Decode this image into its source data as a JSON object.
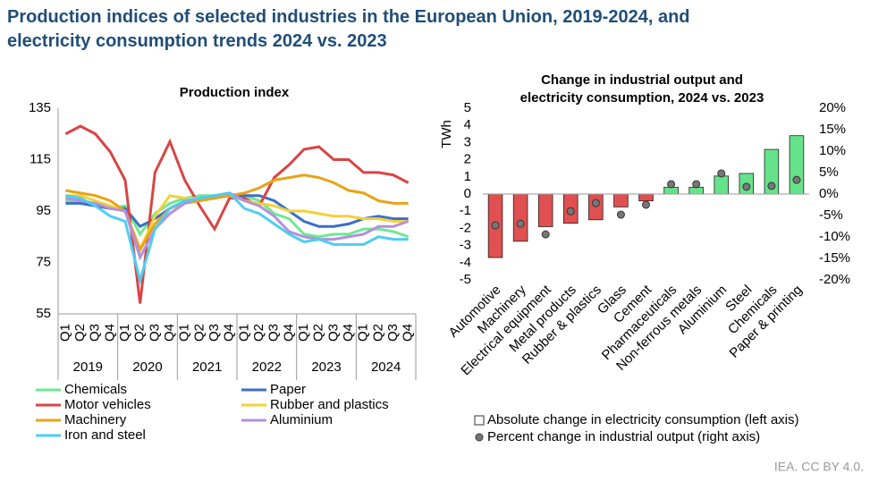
{
  "title": [
    "Production indices of selected industries in the European Union, 2019-2024, and",
    "electricity consumption trends 2024 vs. 2023"
  ],
  "source": "IEA. CC BY 4.0.",
  "chart_data": [
    {
      "type": "line",
      "title": "Production index",
      "categories": [
        "Q1",
        "Q2",
        "Q3",
        "Q4",
        "Q1",
        "Q2",
        "Q3",
        "Q4",
        "Q1",
        "Q2",
        "Q3",
        "Q4",
        "Q1",
        "Q2",
        "Q3",
        "Q4",
        "Q1",
        "Q2",
        "Q3",
        "Q4",
        "Q1",
        "Q2",
        "Q3",
        "Q4"
      ],
      "x_groups": [
        "2019",
        "2020",
        "2021",
        "2022",
        "2023",
        "2024"
      ],
      "ylim": [
        55,
        135
      ],
      "yticks": [
        55,
        75,
        95,
        115,
        135
      ],
      "grid": false,
      "series": [
        {
          "name": "Chemicals",
          "color": "#6ee88f",
          "values": [
            99,
            98,
            97,
            96,
            97,
            86,
            94,
            98,
            100,
            101,
            101,
            101,
            101,
            99,
            94,
            92,
            86,
            85,
            86,
            86,
            88,
            88,
            87,
            85
          ]
        },
        {
          "name": "Paper",
          "color": "#3b6fc9",
          "values": [
            98,
            98,
            97,
            96,
            96,
            89,
            92,
            96,
            99,
            100,
            100,
            101,
            101,
            101,
            99,
            95,
            91,
            89,
            89,
            90,
            92,
            93,
            92,
            92
          ]
        },
        {
          "name": "Motor vehicles",
          "color": "#d94545",
          "values": [
            125,
            128,
            125,
            118,
            107,
            59,
            110,
            122,
            107,
            97,
            88,
            100,
            100,
            97,
            108,
            113,
            119,
            120,
            115,
            115,
            110,
            110,
            109,
            106
          ]
        },
        {
          "name": "Rubber and plastics",
          "color": "#f2d13a",
          "values": [
            101,
            101,
            99,
            97,
            95,
            80,
            93,
            101,
            100,
            100,
            100,
            101,
            99,
            98,
            97,
            95,
            95,
            94,
            93,
            93,
            92,
            92,
            91,
            91
          ]
        },
        {
          "name": "Machinery",
          "color": "#e8a317",
          "values": [
            103,
            102,
            101,
            99,
            95,
            80,
            90,
            96,
            98,
            99,
            100,
            101,
            102,
            104,
            107,
            108,
            109,
            108,
            106,
            103,
            102,
            99,
            98,
            98
          ]
        },
        {
          "name": "Aluminium",
          "color": "#b48fe0",
          "values": [
            100,
            99,
            98,
            96,
            95,
            77,
            88,
            94,
            98,
            100,
            101,
            102,
            99,
            97,
            93,
            87,
            85,
            84,
            84,
            85,
            86,
            89,
            89,
            91
          ]
        },
        {
          "name": "Iron and steel",
          "color": "#4fcdf0",
          "values": [
            101,
            100,
            97,
            93,
            91,
            68,
            88,
            96,
            99,
            100,
            101,
            102,
            96,
            94,
            90,
            86,
            83,
            84,
            82,
            82,
            82,
            85,
            84,
            84
          ]
        }
      ]
    },
    {
      "type": "combo",
      "title": [
        "Change in industrial output and",
        "electricity consumption, 2024 vs. 2023"
      ],
      "ylabel": "TWh",
      "categories": [
        "Automotive",
        "Machinery",
        "Electrical equipment",
        "Metal products",
        "Rubber & plastics",
        "Glass",
        "Cement",
        "Pharmaceuticals",
        "Non-ferrous metals",
        "Aluminium",
        "Steel",
        "Chemicals",
        "Paper & printing"
      ],
      "ylim": [
        -5,
        5
      ],
      "yticks": [
        -5,
        -4,
        -3,
        -2,
        -1,
        0,
        1,
        2,
        3,
        4,
        5
      ],
      "y2lim": [
        -20,
        20
      ],
      "y2ticks": [
        {
          "value": -20,
          "label": "-20%"
        },
        {
          "value": -15,
          "label": "-15%"
        },
        {
          "value": -10,
          "label": "-10%"
        },
        {
          "value": -5,
          "label": "-5%"
        },
        {
          "value": 0,
          "label": "0%"
        },
        {
          "value": 5,
          "label": "5%"
        },
        {
          "value": 10,
          "label": "10%"
        },
        {
          "value": 15,
          "label": "15%"
        },
        {
          "value": 20,
          "label": "20%"
        }
      ],
      "grid": false,
      "colors": {
        "positive": "#66e38a",
        "negative": "#e05050"
      },
      "series": [
        {
          "name": "Absolute change in electricity consumption (left axis)",
          "type": "bar",
          "color": "#ffffff",
          "values": [
            -3.7,
            -2.75,
            -1.9,
            -1.7,
            -1.5,
            -0.75,
            -0.4,
            0.4,
            0.4,
            1.05,
            1.2,
            2.6,
            3.4
          ]
        },
        {
          "name": "Percent change in industrial output (right axis)",
          "type": "scatter",
          "axis": "y2",
          "color": "#777777",
          "values": [
            -7.3,
            -6.9,
            -9.4,
            -4,
            -2.1,
            -4.8,
            -2.5,
            2.3,
            2.3,
            4.8,
            1.7,
            1.9,
            3.3
          ]
        }
      ]
    }
  ]
}
